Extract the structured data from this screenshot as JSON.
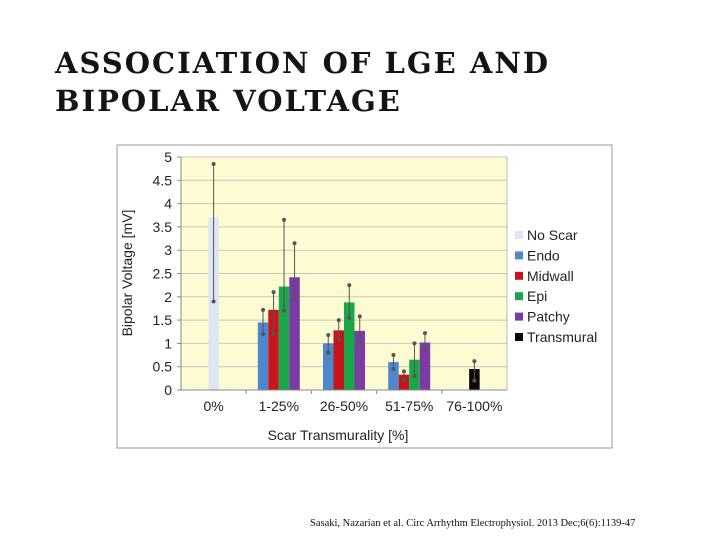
{
  "slide": {
    "title_line1": "ASSOCIATION OF LGE AND",
    "title_line2": "BIPOLAR VOLTAGE",
    "citation": "Sasaki, Nazarian et al. Circ Arrhythm Electrophysiol. 2013 Dec;6(6):1139-47"
  },
  "chart_data": {
    "type": "bar",
    "title": "",
    "xlabel": "Scar Transmurality  [%]",
    "ylabel": "Bipolar Voltage [mV]",
    "ylim": [
      0,
      5
    ],
    "yticks": [
      "0",
      "0.5",
      "1",
      "1.5",
      "2",
      "2.5",
      "3",
      "3.5",
      "4",
      "4.5",
      "5"
    ],
    "categories": [
      "0%",
      "1-25%",
      "26-50%",
      "51-75%",
      "76-100%"
    ],
    "grid": true,
    "legend_position": "right",
    "series": [
      {
        "name": "No Scar",
        "color": "#dde7f4",
        "values": [
          3.7,
          null,
          null,
          null,
          null
        ],
        "err_low": [
          1.9,
          null,
          null,
          null,
          null
        ],
        "err_high": [
          4.85,
          null,
          null,
          null,
          null
        ]
      },
      {
        "name": "Endo",
        "color": "#4f87cc",
        "values": [
          null,
          1.45,
          1.0,
          0.6,
          null
        ],
        "err_low": [
          null,
          1.2,
          0.8,
          0.45,
          null
        ],
        "err_high": [
          null,
          1.72,
          1.18,
          0.75,
          null
        ]
      },
      {
        "name": "Midwall",
        "color": "#c8151b",
        "values": [
          null,
          1.72,
          1.28,
          0.33,
          null
        ],
        "err_low": [
          null,
          1.2,
          1.08,
          0.22,
          null
        ],
        "err_high": [
          null,
          2.1,
          1.5,
          0.4,
          null
        ]
      },
      {
        "name": "Epi",
        "color": "#1aa64b",
        "values": [
          null,
          2.22,
          1.88,
          0.65,
          null
        ],
        "err_low": [
          null,
          1.7,
          1.55,
          0.3,
          null
        ],
        "err_high": [
          null,
          3.65,
          2.25,
          1.0,
          null
        ]
      },
      {
        "name": "Patchy",
        "color": "#7a3ba3",
        "values": [
          null,
          2.42,
          1.27,
          1.02,
          null
        ],
        "err_low": [
          null,
          1.95,
          1.0,
          0.85,
          null
        ],
        "err_high": [
          null,
          3.15,
          1.58,
          1.22,
          null
        ]
      },
      {
        "name": "Transmural",
        "color": "#0a0a0a",
        "values": [
          null,
          null,
          null,
          null,
          0.45
        ],
        "err_low": [
          null,
          null,
          null,
          null,
          0.2
        ],
        "err_high": [
          null,
          null,
          null,
          null,
          0.62
        ]
      }
    ]
  }
}
